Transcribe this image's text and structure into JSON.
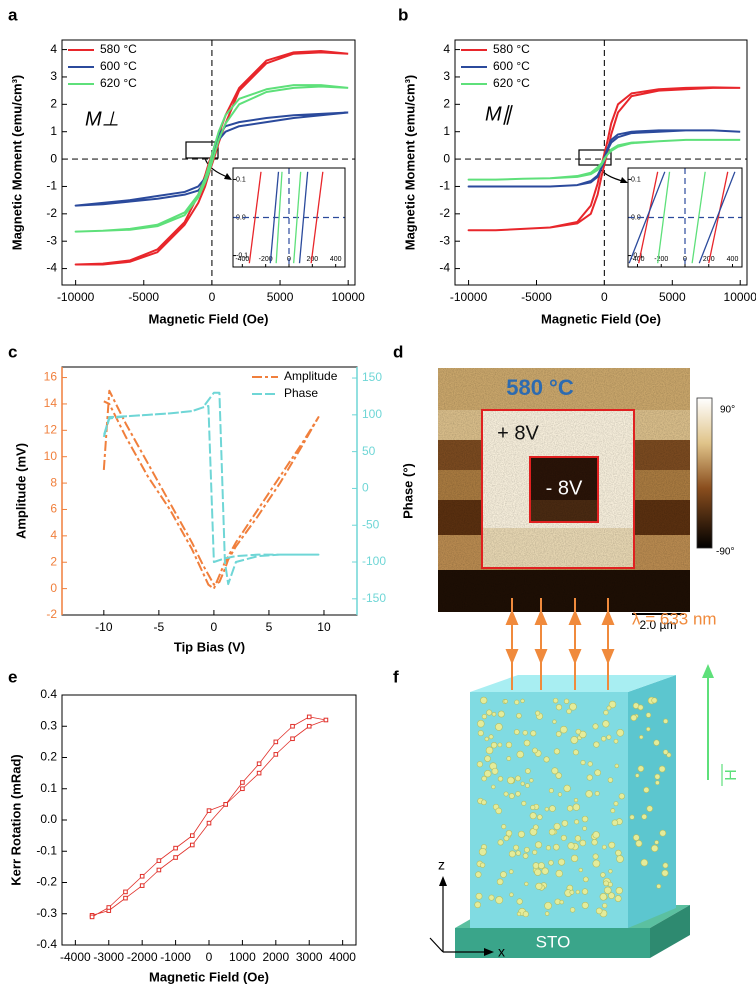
{
  "panel_labels": [
    "a",
    "b",
    "c",
    "d",
    "e",
    "f"
  ],
  "chart_data": [
    {
      "type": "line",
      "annotation": "M⊥",
      "xlabel": "Magnetic Field (Oe)",
      "ylabel": "Magnetic Moment (emu/cm³)",
      "x": [
        10000,
        8000,
        6000,
        4000,
        2000,
        1000,
        500,
        200,
        0,
        -200,
        -500,
        -1000,
        -2000,
        -4000,
        -6000,
        -8000,
        -10000,
        -8000,
        -6000,
        -4000,
        -2000,
        -1000,
        -500,
        -200,
        0,
        200,
        500,
        1000,
        2000,
        4000,
        6000,
        8000,
        10000
      ],
      "series": [
        {
          "name": "580 °C",
          "color": "#e8262b",
          "values": [
            3.85,
            3.95,
            3.9,
            3.6,
            2.6,
            1.6,
            0.9,
            0.4,
            0.15,
            -0.1,
            -0.6,
            -1.3,
            -2.3,
            -3.3,
            -3.7,
            -3.82,
            -3.85,
            -3.85,
            -3.75,
            -3.4,
            -2.4,
            -1.6,
            -1.0,
            -0.5,
            -0.2,
            0.1,
            0.6,
            1.3,
            2.5,
            3.5,
            3.85,
            3.9,
            3.85
          ]
        },
        {
          "name": "600 °C",
          "color": "#2b4a9c",
          "values": [
            1.7,
            1.65,
            1.6,
            1.5,
            1.35,
            1.2,
            0.9,
            0.5,
            0.1,
            -0.3,
            -0.7,
            -1.0,
            -1.2,
            -1.35,
            -1.5,
            -1.6,
            -1.7,
            -1.65,
            -1.55,
            -1.45,
            -1.3,
            -1.15,
            -0.85,
            -0.45,
            -0.1,
            0.3,
            0.7,
            1.0,
            1.2,
            1.35,
            1.5,
            1.6,
            1.7
          ]
        },
        {
          "name": "620 °C",
          "color": "#5ee07a",
          "values": [
            2.6,
            2.7,
            2.7,
            2.55,
            2.2,
            1.6,
            1.0,
            0.5,
            0.15,
            -0.2,
            -0.7,
            -1.3,
            -1.95,
            -2.4,
            -2.55,
            -2.62,
            -2.65,
            -2.62,
            -2.58,
            -2.45,
            -2.05,
            -1.4,
            -0.85,
            -0.45,
            -0.12,
            0.2,
            0.7,
            1.3,
            2.0,
            2.45,
            2.6,
            2.65,
            2.6
          ]
        }
      ],
      "xlim": [
        -11000,
        10500
      ],
      "ylim": [
        -4.6,
        4.35
      ],
      "xticks": [
        -10000,
        -5000,
        0,
        5000,
        10000
      ],
      "yticks": [
        -4,
        -3,
        -2,
        -1,
        0,
        1,
        2,
        3,
        4
      ],
      "legend": "upper left",
      "zero_lines": true
    },
    {
      "type": "line",
      "series": [
        {
          "color": "#e8262b",
          "x": [
            -340,
            -240
          ],
          "values": [
            -0.12,
            0.12
          ]
        },
        {
          "color": "#e8262b",
          "x": [
            190,
            290
          ],
          "values": [
            -0.12,
            0.12
          ]
        },
        {
          "color": "#2b4a9c",
          "x": [
            -160,
            -90
          ],
          "values": [
            -0.12,
            0.12
          ]
        },
        {
          "color": "#2b4a9c",
          "x": [
            90,
            160
          ],
          "values": [
            -0.12,
            0.12
          ]
        },
        {
          "color": "#5ee07a",
          "x": [
            -110,
            -60
          ],
          "values": [
            -0.12,
            0.12
          ]
        },
        {
          "color": "#5ee07a",
          "x": [
            40,
            100
          ],
          "values": [
            -0.12,
            0.12
          ]
        }
      ],
      "xlim": [
        -480,
        480
      ],
      "ylim": [
        -0.13,
        0.13
      ],
      "xticks": [
        -400,
        -200,
        0,
        200,
        400
      ],
      "yticks": [
        -0.1,
        {
          "value": 0,
          "label": "0.0"
        },
        0.1
      ],
      "zero_lines": true
    },
    {
      "type": "line",
      "annotation": "M∥",
      "xlabel": "Magnetic Field (Oe)",
      "ylabel": "Magnetic Moment (emu/cm³)",
      "x": [
        10000,
        8000,
        6000,
        4000,
        2000,
        1000,
        500,
        200,
        0,
        -200,
        -500,
        -1000,
        -2000,
        -4000,
        -6000,
        -8000,
        -10000,
        -8000,
        -6000,
        -4000,
        -2000,
        -1000,
        -500,
        -200,
        0,
        200,
        500,
        1000,
        2000,
        4000,
        6000,
        8000,
        10000
      ],
      "series": [
        {
          "name": "580 °C",
          "color": "#e8262b",
          "values": [
            2.6,
            2.62,
            2.6,
            2.55,
            2.4,
            2.0,
            1.3,
            0.6,
            0.2,
            -0.2,
            -0.9,
            -1.7,
            -2.3,
            -2.5,
            -2.55,
            -2.6,
            -2.6,
            -2.6,
            -2.55,
            -2.5,
            -2.35,
            -2.0,
            -1.3,
            -0.6,
            -0.2,
            0.2,
            0.9,
            1.7,
            2.3,
            2.5,
            2.55,
            2.6,
            2.6
          ]
        },
        {
          "name": "600 °C",
          "color": "#2b4a9c",
          "values": [
            1.0,
            1.05,
            1.05,
            1.05,
            1.0,
            0.9,
            0.7,
            0.35,
            0.05,
            -0.3,
            -0.6,
            -0.8,
            -0.95,
            -1.0,
            -1.0,
            -1.0,
            -1.0,
            -1.0,
            -1.0,
            -1.0,
            -0.95,
            -0.85,
            -0.65,
            -0.3,
            -0.05,
            0.3,
            0.6,
            0.8,
            0.95,
            1.0,
            1.05,
            1.05,
            1.0
          ]
        },
        {
          "name": "620 °C",
          "color": "#5ee07a",
          "values": [
            0.7,
            0.7,
            0.7,
            0.65,
            0.6,
            0.5,
            0.35,
            0.15,
            0.02,
            -0.15,
            -0.3,
            -0.5,
            -0.62,
            -0.7,
            -0.72,
            -0.75,
            -0.75,
            -0.75,
            -0.72,
            -0.7,
            -0.65,
            -0.55,
            -0.4,
            -0.2,
            -0.02,
            0.15,
            0.3,
            0.45,
            0.58,
            0.65,
            0.7,
            0.7,
            0.7
          ]
        }
      ],
      "xlim": [
        -11000,
        10500
      ],
      "ylim": [
        -4.6,
        4.35
      ],
      "xticks": [
        -10000,
        -5000,
        0,
        5000,
        10000
      ],
      "yticks": [
        -4,
        -3,
        -2,
        -1,
        0,
        1,
        2,
        3,
        4
      ],
      "legend": "upper left",
      "zero_lines": true
    },
    {
      "type": "line",
      "series": [
        {
          "color": "#e8262b",
          "x": [
            -390,
            -230
          ],
          "values": [
            -0.12,
            0.12
          ]
        },
        {
          "color": "#e8262b",
          "x": [
            200,
            360
          ],
          "values": [
            -0.12,
            0.12
          ]
        },
        {
          "color": "#2b4a9c",
          "x": [
            -470,
            -170
          ],
          "values": [
            -0.12,
            0.12
          ]
        },
        {
          "color": "#2b4a9c",
          "x": [
            120,
            420
          ],
          "values": [
            -0.12,
            0.12
          ]
        },
        {
          "color": "#5ee07a",
          "x": [
            -230,
            -130
          ],
          "values": [
            -0.12,
            0.12
          ]
        },
        {
          "color": "#5ee07a",
          "x": [
            60,
            170
          ],
          "values": [
            -0.12,
            0.12
          ]
        }
      ],
      "xlim": [
        -480,
        480
      ],
      "ylim": [
        -0.13,
        0.13
      ],
      "xticks": [
        -400,
        -200,
        0,
        200,
        400
      ],
      "yticks": [
        -0.1,
        {
          "value": 0,
          "label": "0.0"
        },
        0.1
      ],
      "zero_lines": true
    },
    {
      "type": "line",
      "xlabel": "Tip Bias (V)",
      "ylabel": "Amplitude (mV)",
      "y2label": "Phase (°)",
      "x": [
        -10,
        -9.5,
        -8,
        -6,
        -4,
        -2,
        -1,
        0,
        0.5,
        1,
        1.3,
        2,
        4,
        6,
        8,
        9.5,
        8,
        6,
        4,
        2,
        1,
        0,
        -0.5,
        -1,
        -2,
        -4,
        -6,
        -8,
        -9.5,
        -10
      ],
      "series": [
        {
          "name": "Amplitude",
          "color": "#f07f3c",
          "values": [
            9,
            15,
            12.5,
            9.5,
            6.5,
            3.5,
            1.8,
            0.3,
            0.5,
            1.5,
            2.2,
            3.2,
            5.5,
            8,
            10.8,
            13,
            11,
            8.5,
            6,
            3.5,
            2,
            0,
            0.3,
            1.2,
            3,
            6,
            8.5,
            11.5,
            14,
            14.2
          ]
        },
        {
          "name": "Phase",
          "color": "#6fd6d6",
          "axis": "y2",
          "values": [
            70,
            95,
            98,
            100,
            102,
            105,
            110,
            130,
            130,
            -100,
            -130,
            -100,
            -92,
            -90,
            -90,
            -90,
            -90,
            -90,
            -90,
            -92,
            -95,
            -100,
            112,
            110,
            105,
            102,
            100,
            98,
            97,
            72
          ]
        }
      ],
      "xlim": [
        -13.8,
        13
      ],
      "ylim": [
        -2,
        16.8
      ],
      "y2lim": [
        -172,
        165
      ],
      "xticks": [
        -10,
        -5,
        0,
        5,
        10
      ],
      "yticks": [
        -2,
        0,
        2,
        4,
        6,
        8,
        10,
        12,
        14,
        16
      ],
      "y2ticks": [
        -150,
        -100,
        -50,
        0,
        50,
        100,
        150
      ],
      "legend": "upper right"
    },
    {
      "type": "line",
      "markers": true,
      "xlabel": "Magnetic Field (Oe)",
      "ylabel": "Kerr Rotation (mRad)",
      "x": [
        -3500,
        -3000,
        -2500,
        -2000,
        -1500,
        -1000,
        -500,
        0,
        500,
        1000,
        1500,
        2000,
        2500,
        3000,
        3500,
        3000,
        2500,
        2000,
        1500,
        1000,
        500,
        0,
        -500,
        -1000,
        -1500,
        -2000,
        -2500,
        -3000,
        -3500
      ],
      "series": [
        {
          "color": "#e0302a",
          "values": [
            -0.305,
            -0.29,
            -0.25,
            -0.21,
            -0.16,
            -0.12,
            -0.08,
            -0.01,
            0.05,
            0.1,
            0.15,
            0.21,
            0.26,
            0.3,
            0.32,
            0.33,
            0.3,
            0.25,
            0.18,
            0.12,
            0.05,
            0.03,
            -0.05,
            -0.09,
            -0.13,
            -0.18,
            -0.23,
            -0.28,
            -0.31
          ]
        }
      ],
      "xlim": [
        -4400,
        4400
      ],
      "ylim": [
        -0.4,
        0.4
      ],
      "xticks": [
        -4000,
        -3000,
        -2000,
        -1000,
        0,
        1000,
        2000,
        3000,
        4000
      ],
      "yticks": [
        -0.4,
        -0.3,
        -0.2,
        -0.1,
        {
          "value": 0,
          "label": "0.0"
        },
        0.1,
        0.2,
        0.3,
        0.4
      ]
    }
  ],
  "afm_image": {
    "temperature": "580 °C",
    "outer_label": "+ 8V",
    "inner_label": "- 8V",
    "colorbar_max": "90°",
    "colorbar_min": "-90°",
    "scale_bar": "2.0 µm"
  },
  "schematic": {
    "wavelength": "λ = 633 nm",
    "field": "H",
    "substrate": "STO",
    "axis_z": "z",
    "axis_x": "x"
  }
}
